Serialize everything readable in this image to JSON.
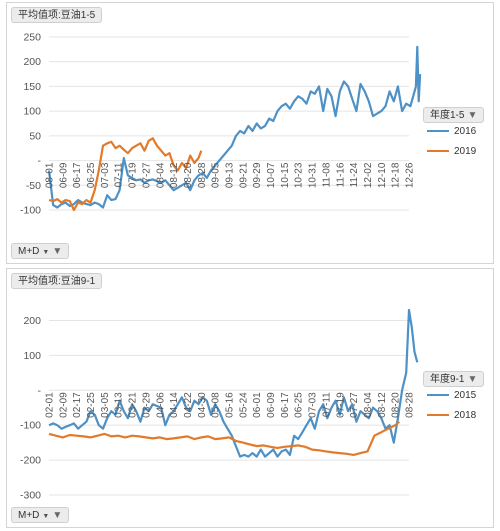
{
  "colors": {
    "blue": "#4e91c6",
    "orange": "#e27a2a",
    "grid": "#e4e4e4",
    "axis_text": "#555555"
  },
  "panels": [
    {
      "field_label": "平均值项:豆油1-5",
      "legend_title": "年度1-5",
      "bottom_field": "M+D"
    },
    {
      "field_label": "平均值项:豆油9-1",
      "legend_title": "年度9-1",
      "bottom_field": "M+D"
    }
  ],
  "chart_data": [
    {
      "type": "line",
      "title": "",
      "ylim": [
        -100,
        250
      ],
      "yticks": [
        -100,
        -50,
        0,
        50,
        100,
        150,
        200,
        250
      ],
      "ytick_labels": [
        "-100",
        "-50",
        "-",
        "50",
        "100",
        "150",
        "200",
        "250"
      ],
      "grid": true,
      "legend_position": "right",
      "x_tick_labels": [
        "08-01",
        "06-09",
        "06-17",
        "06-25",
        "07-03",
        "07-11",
        "07-19",
        "07-27",
        "08-04",
        "08-12",
        "08-20",
        "08-28",
        "09-05",
        "09-13",
        "09-21",
        "09-29",
        "10-07",
        "10-15",
        "10-23",
        "10-31",
        "11-08",
        "11-16",
        "11-24",
        "12-02",
        "12-10",
        "12-18",
        "12-26"
      ],
      "series": [
        {
          "name": "2016",
          "color": "#4e91c6",
          "x": [
            0,
            0.3,
            0.6,
            0.9,
            1.2,
            1.5,
            1.8,
            2.1,
            2.4,
            2.7,
            3.0,
            3.3,
            3.6,
            3.9,
            4.2,
            4.5,
            4.8,
            5.1,
            5.4,
            5.7,
            6.0,
            6.3,
            6.6,
            6.9,
            7.2,
            7.5,
            7.8,
            8.1,
            8.4,
            8.7,
            9.0,
            9.3,
            9.6,
            9.9,
            10.2,
            10.5,
            10.8,
            11.1,
            11.4,
            11.7,
            12.0,
            12.3,
            12.6,
            12.9,
            13.2,
            13.5,
            13.8,
            14.1,
            14.4,
            14.7,
            15.0,
            15.3,
            15.6,
            15.9,
            16.2,
            16.5,
            16.8,
            17.1,
            17.4,
            17.7,
            18.0,
            18.3,
            18.6,
            18.9,
            19.2,
            19.5,
            19.8,
            20.1,
            20.4,
            20.7,
            21.0,
            21.3,
            21.6,
            21.9,
            22.2,
            22.5,
            22.8,
            23.1,
            23.4,
            23.7,
            24.0,
            24.3,
            24.6,
            24.9,
            25.2,
            25.5,
            25.8,
            26.1,
            26.3,
            26.5,
            26.6,
            26.7,
            26.8
          ],
          "values": [
            -20,
            -90,
            -95,
            -88,
            -85,
            -92,
            -88,
            -80,
            -85,
            -88,
            -90,
            -85,
            -88,
            -95,
            -70,
            -80,
            -78,
            -60,
            5,
            -30,
            -35,
            -40,
            -38,
            -45,
            -40,
            -38,
            -42,
            -45,
            -40,
            -50,
            -60,
            -55,
            -50,
            -45,
            -60,
            -40,
            -30,
            -25,
            -35,
            -20,
            -10,
            0,
            10,
            20,
            30,
            50,
            60,
            55,
            70,
            60,
            75,
            65,
            70,
            85,
            80,
            100,
            110,
            115,
            105,
            120,
            130,
            125,
            115,
            140,
            135,
            150,
            100,
            145,
            130,
            90,
            140,
            160,
            150,
            125,
            100,
            155,
            140,
            120,
            90,
            95,
            100,
            110,
            140,
            120,
            150,
            100,
            115,
            110,
            130,
            150,
            230,
            120,
            175
          ]
        },
        {
          "name": "2019",
          "color": "#e27a2a",
          "x": [
            0,
            0.3,
            0.6,
            0.9,
            1.2,
            1.5,
            1.8,
            2.1,
            2.4,
            2.7,
            3.0,
            3.3,
            3.6,
            3.9,
            4.2,
            4.5,
            4.8,
            5.1,
            5.4,
            5.7,
            6.0,
            6.3,
            6.6,
            6.9,
            7.2,
            7.5,
            7.8,
            8.1,
            8.4,
            8.7,
            9.0,
            9.3,
            9.6,
            9.9,
            10.2,
            10.5,
            10.8,
            11.0
          ],
          "values": [
            -80,
            -82,
            -78,
            -85,
            -80,
            -82,
            -100,
            -85,
            -88,
            -80,
            -85,
            -60,
            -20,
            30,
            35,
            38,
            25,
            30,
            22,
            15,
            25,
            30,
            35,
            20,
            40,
            45,
            30,
            20,
            10,
            15,
            -10,
            -20,
            -5,
            -15,
            10,
            -5,
            5,
            20
          ]
        }
      ]
    },
    {
      "type": "line",
      "title": "",
      "ylim": [
        -300,
        250
      ],
      "yticks": [
        -300,
        -200,
        -100,
        0,
        100,
        200
      ],
      "ytick_labels": [
        "-300",
        "-200",
        "-100",
        "-",
        "100",
        "200"
      ],
      "grid": true,
      "legend_position": "right",
      "x_tick_labels": [
        "02-01",
        "02-09",
        "02-17",
        "02-25",
        "03-05",
        "03-13",
        "03-21",
        "03-29",
        "04-06",
        "04-14",
        "04-22",
        "04-30",
        "05-08",
        "05-16",
        "05-24",
        "06-01",
        "06-09",
        "06-17",
        "06-25",
        "07-03",
        "07-11",
        "07-19",
        "07-27",
        "08-04",
        "08-12",
        "08-20",
        "08-28"
      ],
      "series": [
        {
          "name": "2015",
          "color": "#4e91c6",
          "x": [
            0,
            0.3,
            0.6,
            0.9,
            1.2,
            1.5,
            1.8,
            2.1,
            2.4,
            2.7,
            3.0,
            3.3,
            3.6,
            3.9,
            4.2,
            4.5,
            4.8,
            5.1,
            5.4,
            5.7,
            6.0,
            6.3,
            6.6,
            6.9,
            7.2,
            7.5,
            7.8,
            8.1,
            8.4,
            8.7,
            9.0,
            9.3,
            9.6,
            9.9,
            10.2,
            10.5,
            10.8,
            11.1,
            11.4,
            11.7,
            12.0,
            12.3,
            12.6,
            12.9,
            13.2,
            13.5,
            13.8,
            14.1,
            14.4,
            14.7,
            15.0,
            15.3,
            15.6,
            15.9,
            16.2,
            16.5,
            16.8,
            17.1,
            17.4,
            17.7,
            18.0,
            18.3,
            18.6,
            18.9,
            19.2,
            19.5,
            19.8,
            20.1,
            20.4,
            20.7,
            21.0,
            21.3,
            21.6,
            21.9,
            22.2,
            22.5,
            22.8,
            23.1,
            23.4,
            23.7,
            24.0,
            24.3,
            24.6,
            24.9,
            25.2,
            25.5,
            25.8,
            26.0,
            26.2,
            26.4,
            26.6
          ],
          "values": [
            -100,
            -95,
            -100,
            -110,
            -105,
            -100,
            -95,
            -110,
            -100,
            -90,
            -60,
            -70,
            -100,
            -110,
            -80,
            -60,
            -70,
            -30,
            -60,
            -80,
            -40,
            -60,
            -90,
            -50,
            -60,
            -40,
            -45,
            -50,
            -100,
            -70,
            -60,
            -40,
            -20,
            -50,
            -60,
            -30,
            -40,
            -20,
            -30,
            -70,
            -40,
            -60,
            -90,
            -110,
            -130,
            -160,
            -190,
            -185,
            -190,
            -180,
            -190,
            -170,
            -190,
            -180,
            -170,
            -190,
            -175,
            -170,
            -185,
            -130,
            -140,
            -120,
            -100,
            -80,
            -110,
            -60,
            -40,
            -80,
            -50,
            -30,
            -70,
            -20,
            -60,
            -40,
            -90,
            -60,
            -70,
            -80,
            -50,
            -60,
            -80,
            -110,
            -100,
            -150,
            -80,
            0,
            50,
            230,
            180,
            110,
            80
          ]
        },
        {
          "name": "2018",
          "color": "#e27a2a",
          "x": [
            0,
            0.5,
            1.0,
            1.5,
            2.0,
            2.5,
            3.0,
            3.5,
            4.0,
            4.5,
            5.0,
            5.5,
            6.0,
            6.5,
            7.0,
            7.5,
            8.0,
            8.5,
            9.0,
            9.5,
            10.0,
            10.5,
            11.0,
            11.5,
            12.0,
            12.5,
            13.0,
            13.5,
            14.0,
            14.5,
            15.0,
            15.5,
            16.0,
            16.5,
            17.0,
            17.5,
            18.0,
            18.5,
            19.0,
            19.5,
            20.0,
            20.5,
            21.0,
            21.5,
            22.0,
            22.5,
            23.0,
            23.5,
            24.0,
            24.5,
            25.0,
            25.3
          ],
          "values": [
            -125,
            -130,
            -135,
            -128,
            -130,
            -132,
            -135,
            -130,
            -125,
            -132,
            -130,
            -135,
            -130,
            -132,
            -135,
            -138,
            -135,
            -140,
            -138,
            -135,
            -132,
            -140,
            -135,
            -132,
            -140,
            -138,
            -135,
            -145,
            -150,
            -155,
            -160,
            -158,
            -162,
            -165,
            -162,
            -160,
            -158,
            -162,
            -170,
            -172,
            -175,
            -178,
            -180,
            -182,
            -185,
            -180,
            -175,
            -130,
            -120,
            -110,
            -100,
            -90
          ]
        }
      ]
    }
  ]
}
